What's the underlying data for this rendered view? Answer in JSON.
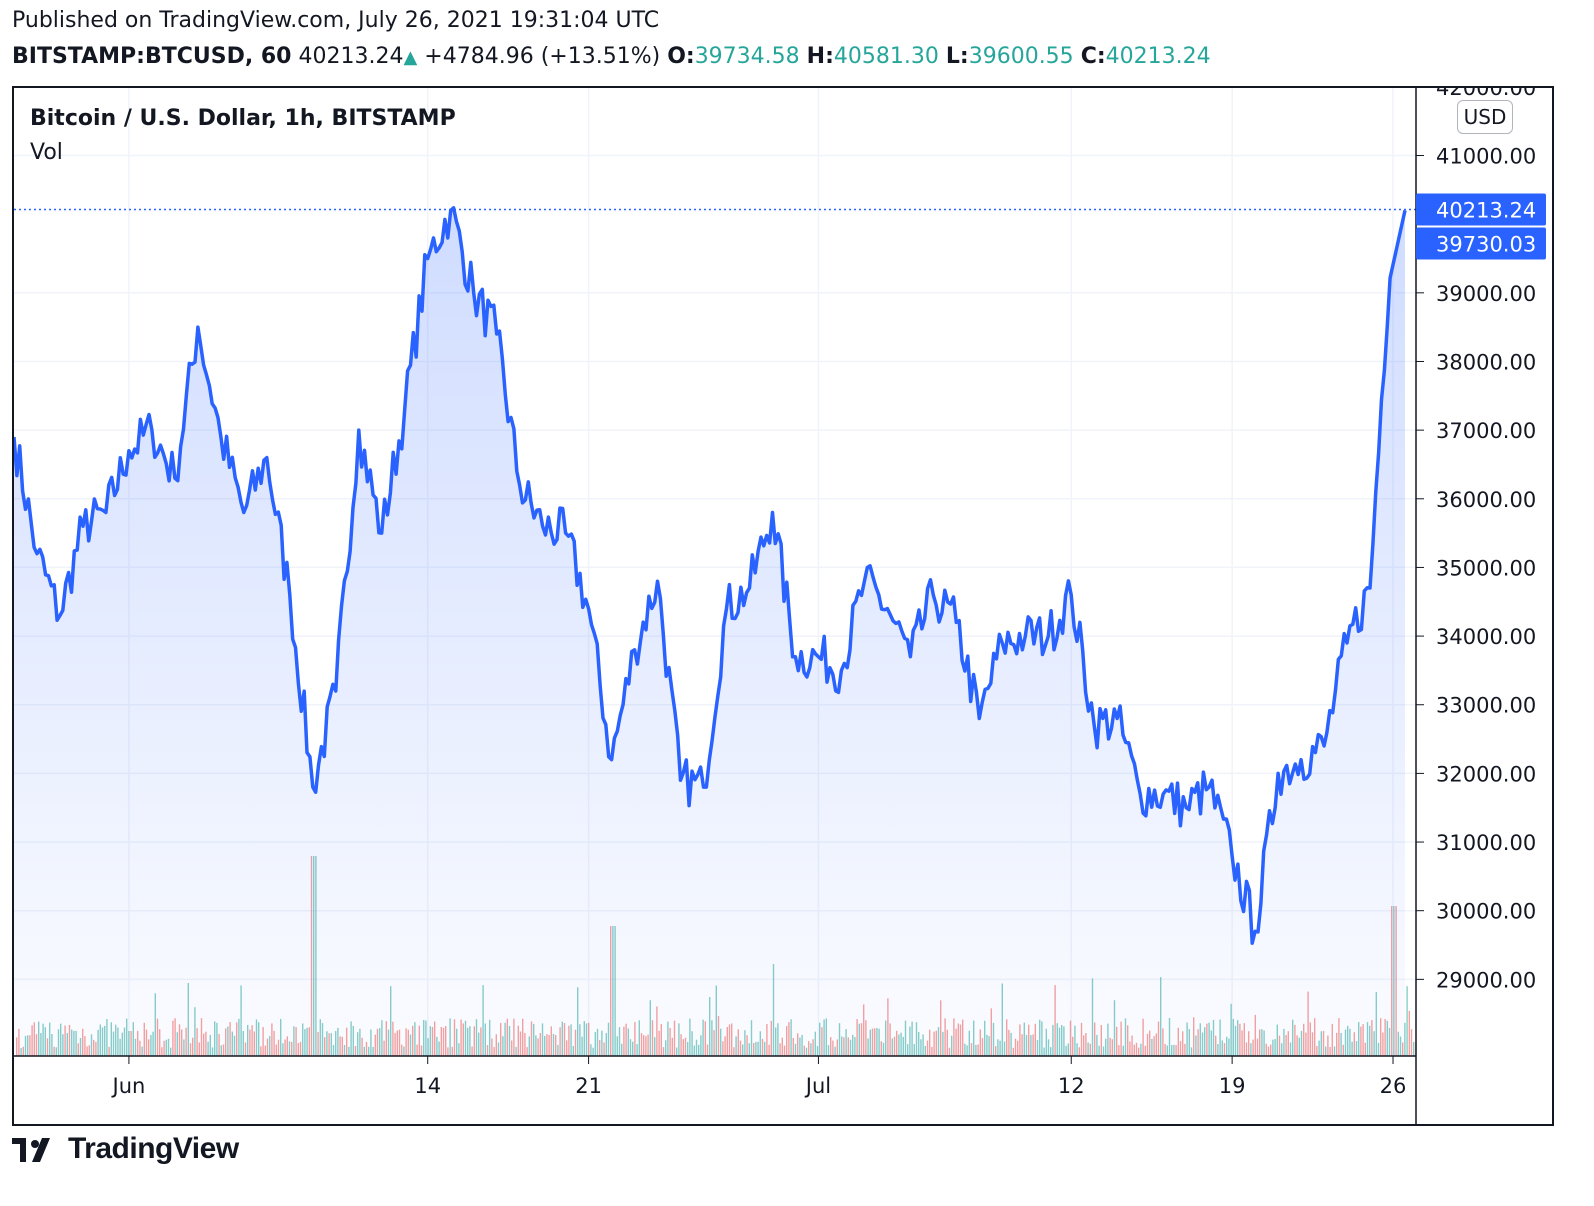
{
  "header": {
    "published": "Published on TradingView.com, July 26, 2021 19:31:04 UTC",
    "symbol": "BITSTAMP:BTCUSD, 60",
    "last": "40213.24",
    "change": "+4784.96 (+13.51%)",
    "open_label": "O:",
    "open": "39734.58",
    "high_label": "H:",
    "high": "40581.30",
    "low_label": "L:",
    "low": "39600.55",
    "close_label": "C:",
    "close": "40213.24"
  },
  "legend": {
    "series": "Bitcoin / U.S. Dollar, 1h, BITSTAMP",
    "volume": "Vol"
  },
  "unit": "USD",
  "logo_text": "TradingView",
  "colors": {
    "line": "#2962ff",
    "up": "#26a69a",
    "down": "#ef5350",
    "grid": "#f0f3fa",
    "price_label_bg": "#2962ff"
  },
  "chart_data": {
    "type": "area",
    "title": "Bitcoin / U.S. Dollar, 1h, BITSTAMP",
    "ylim": [
      28000,
      42100
    ],
    "xlim": [
      "2021-05-27",
      "2021-07-27"
    ],
    "y_ticks": [
      "42000.00",
      "41000.00",
      "39000.00",
      "38000.00",
      "37000.00",
      "36000.00",
      "35000.00",
      "34000.00",
      "33000.00",
      "32000.00",
      "31000.00",
      "30000.00",
      "29000.00"
    ],
    "x_ticks": [
      {
        "label": "Jun",
        "date": "2021-06-01"
      },
      {
        "label": "14",
        "date": "2021-06-14"
      },
      {
        "label": "21",
        "date": "2021-06-21"
      },
      {
        "label": "Jul",
        "date": "2021-07-01"
      },
      {
        "label": "12",
        "date": "2021-07-12"
      },
      {
        "label": "19",
        "date": "2021-07-19"
      },
      {
        "label": "26",
        "date": "2021-07-26"
      }
    ],
    "price_labels": [
      {
        "label": "40213.24",
        "value": 40213.24,
        "style": "last"
      },
      {
        "label": "39730.03",
        "value": 39730.03,
        "style": "filled"
      }
    ],
    "series": [
      {
        "x": [
          "2021-05-27",
          "2021-05-28",
          "2021-05-29",
          "2021-05-30",
          "2021-05-31",
          "2021-06-01",
          "2021-06-02",
          "2021-06-03",
          "2021-06-04",
          "2021-06-05",
          "2021-06-06",
          "2021-06-07",
          "2021-06-08",
          "2021-06-09",
          "2021-06-10",
          "2021-06-11",
          "2021-06-12",
          "2021-06-13",
          "2021-06-14",
          "2021-06-15",
          "2021-06-16",
          "2021-06-17",
          "2021-06-18",
          "2021-06-19",
          "2021-06-20",
          "2021-06-21",
          "2021-06-22",
          "2021-06-23",
          "2021-06-24",
          "2021-06-25",
          "2021-06-26",
          "2021-06-27",
          "2021-06-28",
          "2021-06-29",
          "2021-06-30",
          "2021-07-01",
          "2021-07-02",
          "2021-07-03",
          "2021-07-04",
          "2021-07-05",
          "2021-07-06",
          "2021-07-07",
          "2021-07-08",
          "2021-07-09",
          "2021-07-10",
          "2021-07-11",
          "2021-07-12",
          "2021-07-13",
          "2021-07-14",
          "2021-07-15",
          "2021-07-16",
          "2021-07-17",
          "2021-07-18",
          "2021-07-19",
          "2021-07-20",
          "2021-07-21",
          "2021-07-22",
          "2021-07-23",
          "2021-07-24",
          "2021-07-25",
          "2021-07-26"
        ],
        "values": [
          36900,
          35200,
          34300,
          35600,
          35800,
          36700,
          37000,
          36300,
          38500,
          36900,
          35800,
          36600,
          34600,
          31800,
          33200,
          37000,
          35500,
          37300,
          39500,
          40200,
          39000,
          38400,
          36200,
          35600,
          35500,
          34400,
          32200,
          33800,
          34800,
          31900,
          31800,
          34400,
          34700,
          35800,
          33700,
          33700,
          33500,
          34800,
          34400,
          33700,
          34600,
          34200,
          32800,
          33900,
          34000,
          34000,
          34600,
          32700,
          32800,
          31700,
          31700,
          31500,
          31800,
          30800,
          29700,
          32000,
          32200,
          32400,
          33900,
          34700,
          40200
        ]
      }
    ],
    "volume": {
      "note": "hourly volume bars, unlabeled axis",
      "spikes": [
        {
          "date": "2021-06-09",
          "value": 100
        },
        {
          "date": "2021-06-22",
          "value": 65
        },
        {
          "date": "2021-07-26",
          "value": 75
        }
      ]
    }
  }
}
